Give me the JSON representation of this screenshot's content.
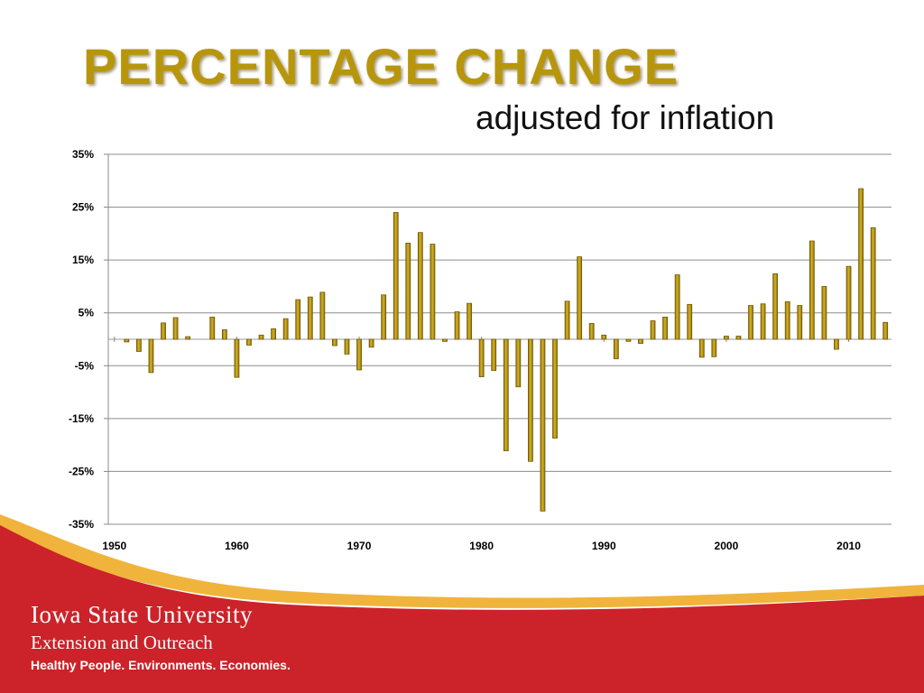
{
  "header": {
    "title": "PERCENTAGE CHANGE",
    "subtitle": "adjusted for inflation"
  },
  "footer": {
    "university": "Iowa State University",
    "unit": "Extension and Outreach",
    "tagline": "Healthy People. Environments. Economies."
  },
  "colors": {
    "bar": "#b8960c",
    "bar_edge": "#6e5a06",
    "title": "#b8960c",
    "footer_red": "#cc2229",
    "swoosh_gold": "#f0b43c"
  },
  "chart_data": {
    "type": "bar",
    "title": "",
    "xlabel": "",
    "ylabel": "",
    "ylim": [
      -35,
      35
    ],
    "yticks": [
      "35%",
      "25%",
      "15%",
      "5%",
      "-5%",
      "-15%",
      "-25%",
      "-35%"
    ],
    "ytick_values": [
      35,
      25,
      15,
      5,
      -5,
      -15,
      -25,
      -35
    ],
    "xticks": [
      "1950",
      "1960",
      "1970",
      "1980",
      "1990",
      "2000",
      "2010"
    ],
    "xtick_values": [
      1950,
      1960,
      1970,
      1980,
      1990,
      2000,
      2010
    ],
    "grid": true,
    "x": [
      1951,
      1952,
      1953,
      1954,
      1955,
      1956,
      1957,
      1958,
      1959,
      1960,
      1961,
      1962,
      1963,
      1964,
      1965,
      1966,
      1967,
      1968,
      1969,
      1970,
      1971,
      1972,
      1973,
      1974,
      1975,
      1976,
      1977,
      1978,
      1979,
      1980,
      1981,
      1982,
      1983,
      1984,
      1985,
      1986,
      1987,
      1988,
      1989,
      1990,
      1991,
      1992,
      1993,
      1994,
      1995,
      1996,
      1997,
      1998,
      1999,
      2000,
      2001,
      2002,
      2003,
      2004,
      2005,
      2006,
      2007,
      2008,
      2009,
      2010,
      2011,
      2012,
      2013
    ],
    "values": [
      -0.5,
      -2.3,
      -6.3,
      3.1,
      4.1,
      0.5,
      0,
      4.2,
      1.8,
      -7.2,
      -1.1,
      0.8,
      2.0,
      3.9,
      7.5,
      8.0,
      8.9,
      -1.2,
      -2.8,
      -5.8,
      -1.5,
      8.4,
      24.0,
      18.2,
      20.2,
      18.0,
      -0.4,
      5.2,
      6.8,
      -7.1,
      -5.9,
      -21.1,
      -9.0,
      -23.1,
      -32.5,
      -18.7,
      7.2,
      15.6,
      3.0,
      0.8,
      -3.7,
      -0.4,
      -0.8,
      3.5,
      4.2,
      12.2,
      6.6,
      -3.4,
      -3.3,
      0.6,
      0.6,
      6.4,
      6.7,
      12.4,
      7.1,
      6.4,
      18.6,
      10.0,
      -1.9,
      13.8,
      28.5,
      21.1,
      3.2
    ]
  }
}
